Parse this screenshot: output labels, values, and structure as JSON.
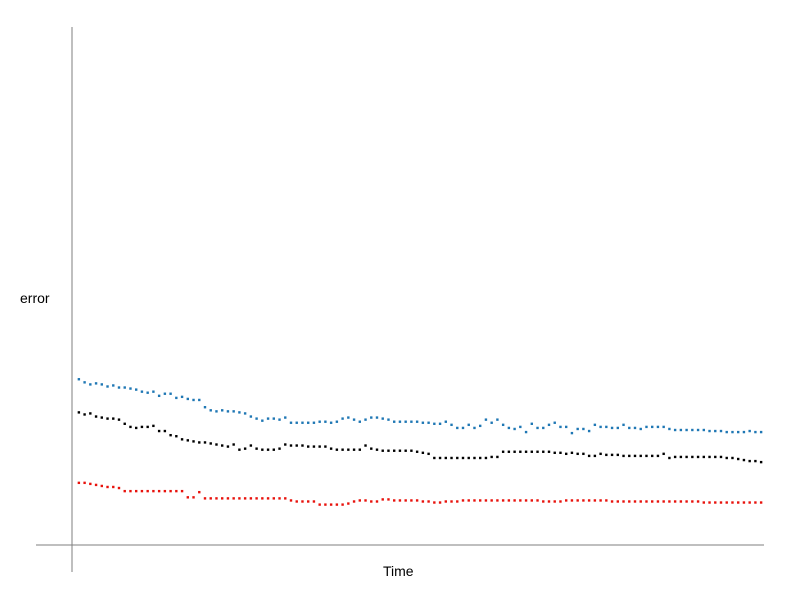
{
  "chart_data": {
    "type": "scatter",
    "title": "",
    "xlabel": "Time",
    "ylabel": "error",
    "x_ticks": false,
    "y_ticks": false,
    "grid": false,
    "legend": "none",
    "n_points": 120,
    "xlim": [
      0,
      120
    ],
    "ylim": [
      0,
      100
    ],
    "series": [
      {
        "color": "#1f77b4",
        "values": [
          32.0,
          31.4,
          31.0,
          31.2,
          31.0,
          30.6,
          30.8,
          30.4,
          30.4,
          30.2,
          30.0,
          29.6,
          29.4,
          29.6,
          28.8,
          29.2,
          29.2,
          28.4,
          28.6,
          28.2,
          28.0,
          28.0,
          26.6,
          26.0,
          25.8,
          26.0,
          25.8,
          25.8,
          25.6,
          25.4,
          24.8,
          24.4,
          24.0,
          24.4,
          24.4,
          24.2,
          24.6,
          23.6,
          23.6,
          23.6,
          23.6,
          23.6,
          23.8,
          23.8,
          23.6,
          23.8,
          24.4,
          24.6,
          24.2,
          23.8,
          24.2,
          24.6,
          24.6,
          24.4,
          24.2,
          23.8,
          23.8,
          23.8,
          23.8,
          23.8,
          23.6,
          23.6,
          23.4,
          23.4,
          23.8,
          23.2,
          22.6,
          22.6,
          23.2,
          22.6,
          23.0,
          24.2,
          23.6,
          24.2,
          23.2,
          22.6,
          22.4,
          22.8,
          21.8,
          23.4,
          22.6,
          22.6,
          23.2,
          23.6,
          22.8,
          22.8,
          21.6,
          22.4,
          22.4,
          22.0,
          23.2,
          22.8,
          22.8,
          22.6,
          22.6,
          23.2,
          22.6,
          22.6,
          22.4,
          22.8,
          22.8,
          22.8,
          22.8,
          22.4,
          22.2,
          22.2,
          22.2,
          22.2,
          22.2,
          22.2,
          22.0,
          22.0,
          22.0,
          21.8,
          21.8,
          21.8,
          21.8,
          22.0,
          21.8,
          21.8
        ]
      },
      {
        "color": "#000000",
        "values": [
          25.6,
          25.2,
          25.4,
          24.8,
          24.6,
          24.4,
          24.4,
          24.2,
          23.4,
          22.8,
          22.6,
          22.8,
          22.8,
          23.0,
          22.0,
          22.0,
          21.2,
          21.0,
          20.4,
          20.2,
          20.0,
          19.8,
          19.8,
          19.6,
          19.4,
          19.2,
          19.0,
          19.4,
          18.4,
          18.6,
          19.2,
          18.6,
          18.4,
          18.4,
          18.4,
          18.6,
          19.4,
          19.2,
          19.2,
          19.2,
          19.0,
          19.0,
          19.0,
          19.0,
          18.6,
          18.4,
          18.4,
          18.4,
          18.4,
          18.4,
          19.2,
          18.6,
          18.4,
          18.2,
          18.2,
          18.2,
          18.2,
          18.2,
          18.2,
          18.0,
          17.8,
          17.6,
          16.8,
          16.8,
          16.8,
          16.8,
          16.8,
          16.8,
          16.8,
          16.8,
          16.8,
          16.8,
          17.0,
          17.0,
          18.0,
          18.0,
          18.0,
          18.0,
          18.0,
          18.0,
          18.0,
          18.0,
          18.0,
          17.8,
          17.8,
          17.6,
          17.8,
          17.6,
          17.6,
          17.2,
          17.2,
          17.6,
          17.4,
          17.4,
          17.4,
          17.2,
          17.2,
          17.2,
          17.2,
          17.2,
          17.2,
          17.2,
          17.6,
          16.8,
          17.0,
          17.0,
          17.0,
          17.0,
          17.0,
          17.0,
          17.0,
          17.0,
          17.0,
          16.8,
          16.8,
          16.6,
          16.4,
          16.2,
          16.2,
          16.0
        ]
      },
      {
        "color": "#e8120c",
        "values": [
          12.0,
          12.0,
          11.8,
          11.6,
          11.4,
          11.2,
          11.2,
          11.0,
          10.4,
          10.4,
          10.4,
          10.4,
          10.4,
          10.4,
          10.4,
          10.4,
          10.4,
          10.4,
          10.4,
          9.2,
          9.2,
          10.2,
          9.0,
          9.0,
          9.0,
          9.0,
          9.0,
          9.0,
          9.0,
          9.0,
          9.0,
          9.0,
          9.0,
          9.0,
          9.0,
          9.0,
          9.0,
          8.6,
          8.4,
          8.4,
          8.4,
          8.4,
          7.8,
          7.8,
          7.8,
          7.8,
          7.8,
          8.0,
          8.4,
          8.6,
          8.6,
          8.4,
          8.4,
          8.8,
          8.8,
          8.6,
          8.6,
          8.6,
          8.6,
          8.6,
          8.4,
          8.4,
          8.2,
          8.2,
          8.4,
          8.4,
          8.4,
          8.6,
          8.6,
          8.6,
          8.6,
          8.6,
          8.6,
          8.6,
          8.6,
          8.6,
          8.6,
          8.6,
          8.6,
          8.6,
          8.6,
          8.4,
          8.4,
          8.4,
          8.4,
          8.6,
          8.6,
          8.6,
          8.6,
          8.6,
          8.6,
          8.6,
          8.6,
          8.4,
          8.4,
          8.4,
          8.4,
          8.4,
          8.4,
          8.4,
          8.4,
          8.4,
          8.4,
          8.4,
          8.4,
          8.4,
          8.4,
          8.4,
          8.4,
          8.2,
          8.2,
          8.2,
          8.2,
          8.2,
          8.2,
          8.2,
          8.2,
          8.2,
          8.2,
          8.2
        ]
      }
    ]
  }
}
